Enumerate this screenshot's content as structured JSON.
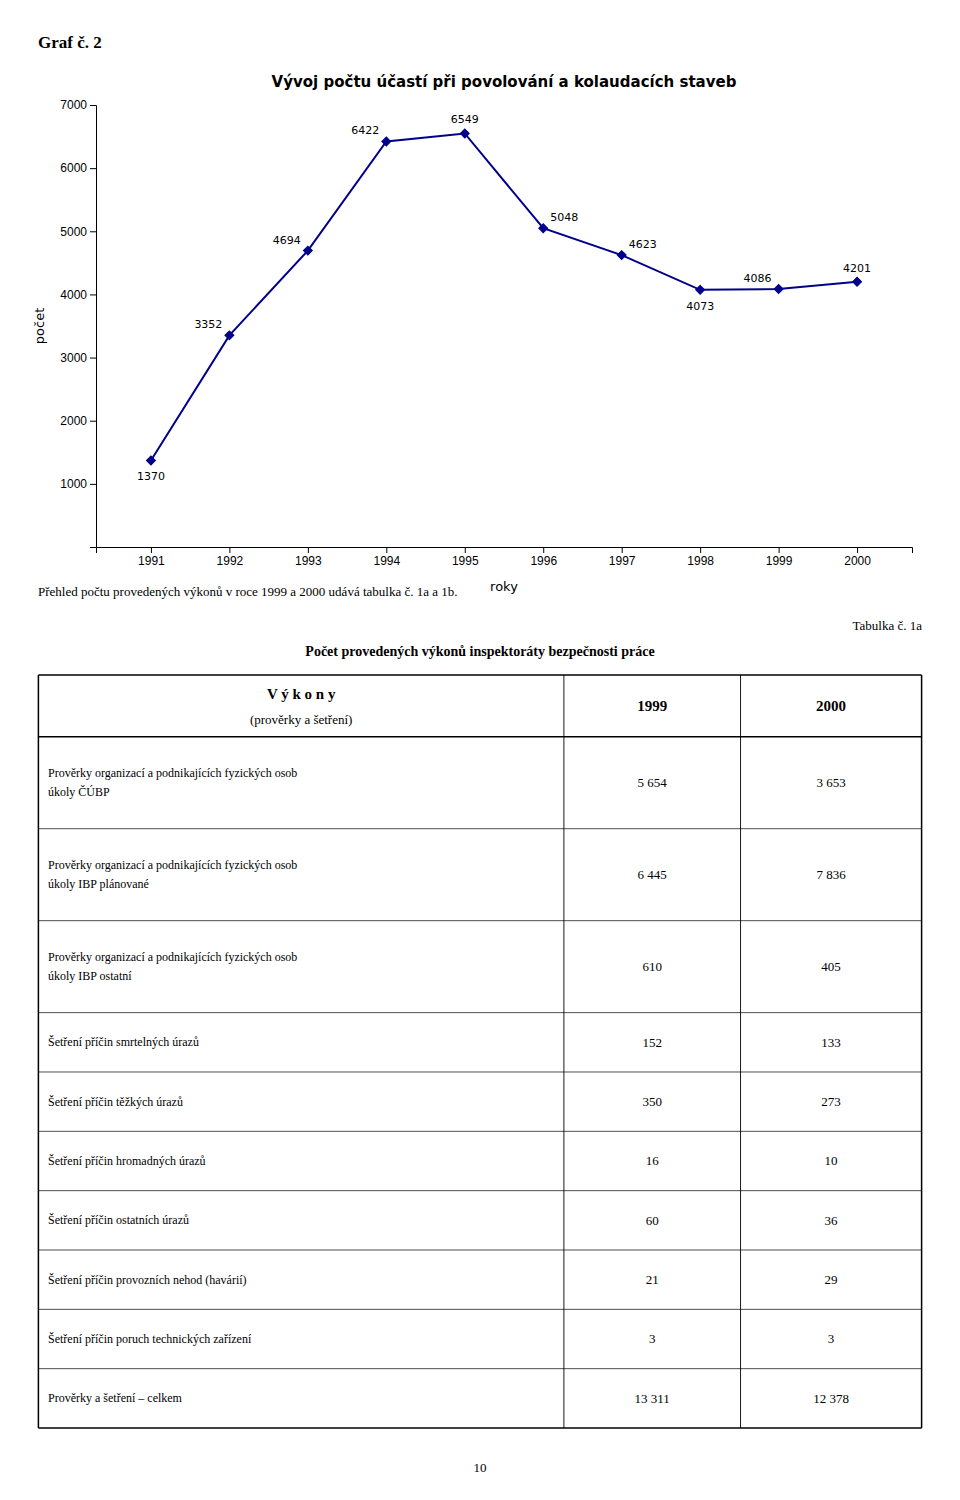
{
  "graph_label": "Graf č. 2",
  "chart_data": {
    "type": "line",
    "title": "Vývoj počtu účastí při povolování a kolaudacích staveb",
    "x_label": "roky",
    "y_label": "počet",
    "x": [
      1991,
      1992,
      1993,
      1994,
      1995,
      1996,
      1997,
      1998,
      1999,
      2000
    ],
    "values": [
      1370,
      3352,
      4694,
      6422,
      6549,
      5048,
      4623,
      4073,
      4086,
      4201
    ],
    "color": "#00008B",
    "marker": "diamond",
    "xlim": [
      1990.3,
      2000.7
    ],
    "xticks": [
      1991,
      1992,
      1993,
      1994,
      1995,
      1996,
      1997,
      1998,
      1999,
      2000
    ],
    "ylim": [
      0,
      7000
    ],
    "yticks": [
      1000,
      2000,
      3000,
      4000,
      5000,
      6000,
      7000
    ],
    "grid": false,
    "data_labels": true
  },
  "paragraph": "Přehled počtu provedených výkonů v roce 1999 a 2000 udává tabulka č. 1a a 1b.",
  "table": {
    "label": "Tabulka č. 1a",
    "title": "Počet provedených výkonů inspektoráty bezpečnosti práce",
    "columns": [
      {
        "title": "V ý k o n y",
        "subtitle": "(prověrky a šetření)"
      },
      {
        "title": "1999"
      },
      {
        "title": "2000"
      }
    ],
    "rows": [
      {
        "label": [
          "Prověrky organizací a podnikajících fyzických osob",
          "úkoly ČÚBP"
        ],
        "cells": [
          "5 654",
          "3 653"
        ]
      },
      {
        "label": [
          "Prověrky organizací a podnikajících fyzických osob",
          "úkoly IBP plánované"
        ],
        "cells": [
          "6 445",
          "7 836"
        ]
      },
      {
        "label": [
          "Prověrky organizací a podnikajících fyzických osob",
          "úkoly IBP ostatní"
        ],
        "cells": [
          "610",
          "405"
        ]
      },
      {
        "label": [
          "Šetření příčin smrtelných úrazů"
        ],
        "cells": [
          "152",
          "133"
        ]
      },
      {
        "label": [
          "Šetření příčin těžkých úrazů"
        ],
        "cells": [
          "350",
          "273"
        ]
      },
      {
        "label": [
          "Šetření příčin hromadných úrazů"
        ],
        "cells": [
          "16",
          "10"
        ]
      },
      {
        "label": [
          "Šetření příčin ostatních úrazů"
        ],
        "cells": [
          "60",
          "36"
        ]
      },
      {
        "label": [
          "Šetření příčin provozních nehod (havárií)"
        ],
        "cells": [
          "21",
          "29"
        ]
      },
      {
        "label": [
          "Šetření příčin poruch technických zařízení"
        ],
        "cells": [
          "3",
          "3"
        ]
      },
      {
        "label": [
          "Prověrky a šetření – celkem"
        ],
        "cells": [
          "13 311",
          "12 378"
        ]
      }
    ]
  },
  "page_number": "10"
}
